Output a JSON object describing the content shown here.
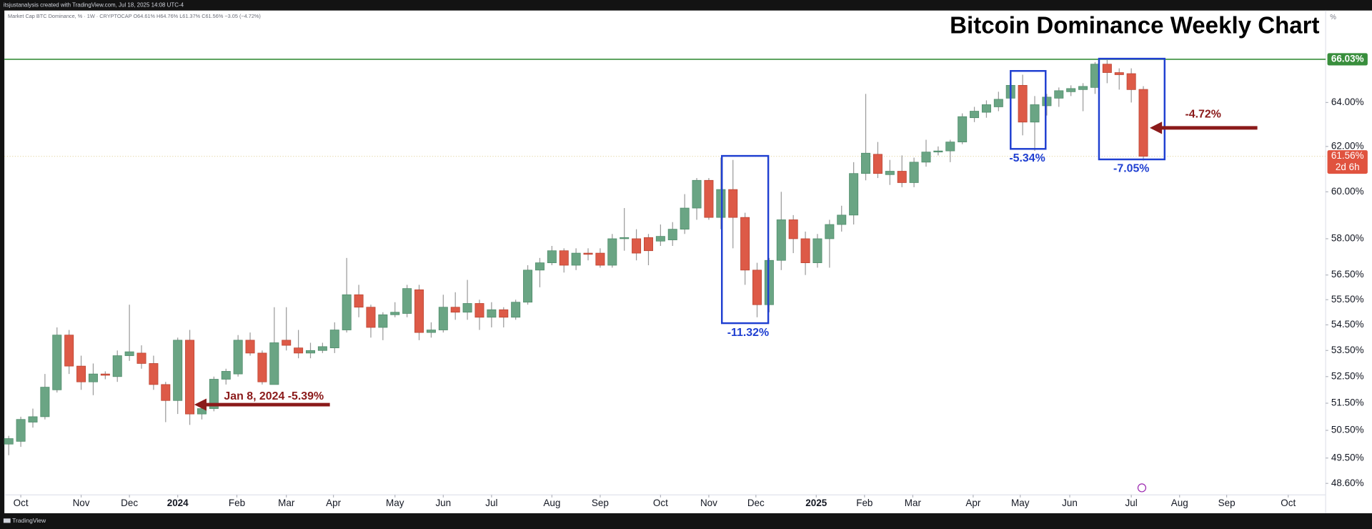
{
  "header": "itsjustanalysis created with TradingView.com, Jul 18, 2025 14:08 UTC-4",
  "footer": "TradingView",
  "chart_data": {
    "type": "candlestick",
    "title": "Bitcoin Dominance Weekly Chart",
    "legend_text": "Market Cap BTC Dominance, % · 1W · CRYPTOCAP  O64.61% H64.76% L61.37% C61.56% −3.05 (−4.72%)",
    "y_unit": "%",
    "log_y": true,
    "up_color": "#6aa584",
    "down_color": "#dd5a47",
    "categories": [
      null,
      null,
      null,
      null,
      null,
      null,
      null,
      null,
      null,
      null,
      null,
      null,
      null,
      null,
      null,
      null,
      null,
      null,
      null,
      null,
      null,
      null,
      null,
      null,
      null,
      null,
      null,
      null,
      null,
      null,
      null,
      null,
      null,
      null,
      null,
      null,
      null,
      null,
      null,
      null,
      null,
      null,
      null,
      null,
      null,
      null,
      null,
      null,
      null,
      null,
      null,
      null,
      null,
      null,
      null,
      null,
      null,
      null,
      null,
      null,
      null,
      null,
      null,
      null,
      null,
      null,
      null,
      null,
      null,
      null,
      null,
      null,
      null,
      null,
      null,
      null,
      null,
      null,
      null,
      null,
      null,
      null,
      null,
      null,
      null,
      null,
      null,
      null,
      null,
      null,
      null,
      null,
      null,
      null,
      null
    ],
    "open": [
      50.0,
      50.1,
      50.8,
      51.0,
      52.0,
      54.1,
      52.9,
      52.3,
      52.6,
      52.5,
      53.3,
      53.4,
      53.0,
      52.2,
      51.6,
      53.9,
      51.1,
      51.3,
      52.4,
      52.6,
      53.9,
      53.4,
      52.2,
      53.9,
      53.6,
      53.4,
      53.5,
      53.6,
      54.3,
      55.7,
      55.2,
      54.4,
      54.9,
      54.95,
      55.9,
      54.2,
      54.3,
      55.2,
      55.0,
      55.35,
      54.8,
      55.1,
      54.8,
      55.4,
      56.7,
      57.0,
      57.5,
      56.9,
      57.4,
      57.4,
      56.9,
      58.0,
      58.0,
      58.05,
      57.9,
      57.95,
      58.4,
      59.3,
      60.5,
      58.9,
      60.1,
      58.9,
      56.7,
      55.3,
      57.1,
      58.8,
      58.0,
      57.0,
      58.0,
      58.6,
      59.0,
      60.8,
      61.65,
      60.75,
      60.9,
      60.4,
      61.3,
      61.75,
      61.8,
      62.2,
      63.3,
      63.55,
      63.8,
      64.2,
      64.8,
      63.1,
      63.85,
      64.2,
      64.5,
      64.6,
      64.7,
      65.8,
      65.4,
      65.35,
      64.61
    ],
    "high": [
      50.3,
      51.0,
      51.3,
      52.6,
      54.4,
      54.3,
      53.3,
      53.0,
      52.7,
      53.5,
      55.3,
      53.7,
      53.3,
      52.3,
      54.0,
      54.3,
      51.5,
      52.5,
      52.8,
      54.1,
      54.2,
      53.5,
      55.2,
      55.2,
      54.3,
      53.8,
      53.8,
      54.6,
      57.2,
      56.1,
      55.3,
      55.0,
      55.4,
      56.1,
      56.1,
      54.6,
      55.7,
      55.8,
      56.3,
      55.5,
      55.4,
      55.2,
      55.5,
      56.9,
      57.2,
      57.7,
      57.6,
      57.6,
      57.6,
      57.6,
      58.2,
      59.3,
      58.4,
      58.2,
      58.6,
      58.7,
      59.9,
      60.6,
      60.6,
      61.5,
      61.4,
      59.1,
      57.0,
      57.2,
      60.0,
      59.0,
      58.3,
      58.2,
      58.8,
      59.4,
      61.3,
      64.4,
      62.2,
      61.4,
      61.6,
      61.5,
      62.3,
      62.0,
      62.3,
      63.5,
      63.8,
      64.1,
      64.5,
      65.0,
      65.3,
      64.3,
      64.4,
      64.7,
      64.8,
      64.9,
      65.9,
      66.0,
      65.6,
      65.6,
      64.76
    ],
    "low": [
      49.6,
      49.9,
      50.6,
      50.9,
      51.9,
      52.6,
      52.0,
      51.8,
      52.4,
      52.3,
      53.1,
      52.8,
      52.0,
      50.8,
      51.1,
      50.7,
      50.9,
      51.2,
      52.2,
      52.5,
      53.3,
      52.2,
      52.2,
      53.5,
      53.2,
      53.2,
      53.4,
      53.4,
      54.2,
      54.8,
      54.0,
      53.9,
      54.8,
      54.8,
      53.9,
      54.0,
      54.2,
      54.7,
      54.7,
      54.3,
      54.4,
      54.4,
      54.7,
      55.3,
      56.0,
      56.9,
      56.6,
      56.7,
      57.1,
      56.8,
      56.8,
      57.5,
      57.1,
      56.9,
      57.7,
      57.7,
      58.2,
      58.8,
      58.8,
      58.4,
      57.6,
      56.1,
      54.8,
      55.0,
      56.7,
      57.4,
      56.5,
      56.8,
      56.8,
      58.3,
      58.6,
      60.5,
      60.6,
      60.3,
      60.2,
      60.2,
      61.1,
      61.6,
      61.3,
      62.1,
      63.1,
      63.3,
      63.6,
      64.0,
      62.5,
      61.8,
      63.4,
      63.8,
      64.3,
      63.6,
      64.4,
      64.9,
      64.6,
      64.0,
      61.37
    ],
    "close": [
      50.2,
      50.9,
      51.0,
      52.1,
      54.1,
      52.9,
      52.3,
      52.6,
      52.55,
      53.3,
      53.45,
      53.0,
      52.2,
      51.6,
      53.9,
      51.1,
      51.3,
      52.4,
      52.7,
      53.9,
      53.4,
      52.3,
      53.8,
      53.7,
      53.4,
      53.5,
      53.65,
      54.3,
      55.7,
      55.2,
      54.4,
      54.9,
      55.0,
      55.95,
      54.2,
      54.3,
      55.2,
      55.0,
      55.35,
      54.8,
      55.1,
      54.8,
      55.4,
      56.7,
      57.0,
      57.5,
      56.9,
      57.4,
      57.35,
      56.9,
      58.0,
      58.05,
      57.4,
      57.5,
      58.1,
      58.4,
      59.3,
      60.5,
      58.9,
      60.1,
      58.9,
      56.7,
      55.3,
      57.1,
      58.8,
      58.0,
      57.0,
      58.0,
      58.6,
      59.0,
      60.8,
      61.7,
      60.8,
      60.9,
      60.4,
      61.3,
      61.75,
      61.8,
      62.2,
      63.35,
      63.6,
      63.9,
      64.15,
      64.8,
      63.1,
      63.9,
      64.25,
      64.55,
      64.65,
      64.75,
      65.8,
      65.4,
      65.3,
      64.6,
      61.56
    ],
    "xlim": [
      -0.36,
      109.1
    ],
    "xticks": [
      {
        "value": 1.0,
        "label": "Oct"
      },
      {
        "value": 6.0,
        "label": "Nov"
      },
      {
        "value": 10.0,
        "label": "Dec"
      },
      {
        "value": 14.0,
        "label": "2024"
      },
      {
        "value": 18.9,
        "label": "Feb"
      },
      {
        "value": 23.0,
        "label": "Mar"
      },
      {
        "value": 26.9,
        "label": "Apr"
      },
      {
        "value": 32.0,
        "label": "May"
      },
      {
        "value": 36.0,
        "label": "Jun"
      },
      {
        "value": 40.0,
        "label": "Jul"
      },
      {
        "value": 45.0,
        "label": "Aug"
      },
      {
        "value": 49.0,
        "label": "Sep"
      },
      {
        "value": 54.0,
        "label": "Oct"
      },
      {
        "value": 58.0,
        "label": "Nov"
      },
      {
        "value": 61.9,
        "label": "Dec"
      },
      {
        "value": 66.9,
        "label": "2025"
      },
      {
        "value": 70.9,
        "label": "Feb"
      },
      {
        "value": 74.9,
        "label": "Mar"
      },
      {
        "value": 79.9,
        "label": "Apr"
      },
      {
        "value": 83.8,
        "label": "May"
      },
      {
        "value": 87.9,
        "label": "Jun"
      },
      {
        "value": 93.0,
        "label": "Jul"
      },
      {
        "value": 97.0,
        "label": "Aug"
      },
      {
        "value": 100.9,
        "label": "Sep"
      },
      {
        "value": 106.0,
        "label": "Oct"
      }
    ],
    "ylim": [
      48.2,
      68.4
    ],
    "yticks": [
      {
        "value": 48.6,
        "label": "48.60%"
      },
      {
        "value": 49.5,
        "label": "49.50%"
      },
      {
        "value": 50.5,
        "label": "50.50%"
      },
      {
        "value": 51.5,
        "label": "51.50%"
      },
      {
        "value": 52.5,
        "label": "52.50%"
      },
      {
        "value": 53.5,
        "label": "53.50%"
      },
      {
        "value": 54.5,
        "label": "54.50%"
      },
      {
        "value": 55.5,
        "label": "55.50%"
      },
      {
        "value": 56.5,
        "label": "56.50%"
      },
      {
        "value": 58.0,
        "label": "58.00%"
      },
      {
        "value": 60.0,
        "label": "60.00%"
      },
      {
        "value": 62.0,
        "label": "62.00%"
      },
      {
        "value": 64.0,
        "label": "64.00%"
      }
    ],
    "hlines": [
      {
        "value": 66.03,
        "label": "66.03%",
        "color": "#388e3c"
      }
    ],
    "last_price": {
      "value": 61.56,
      "label": "61.56%",
      "countdown": "2d 6h",
      "color": "#e0533f"
    },
    "annotations": [
      "Jan 8, 2024 -5.39%",
      "-11.32%",
      "-5.34%",
      "-7.05%",
      "-4.72%"
    ]
  }
}
